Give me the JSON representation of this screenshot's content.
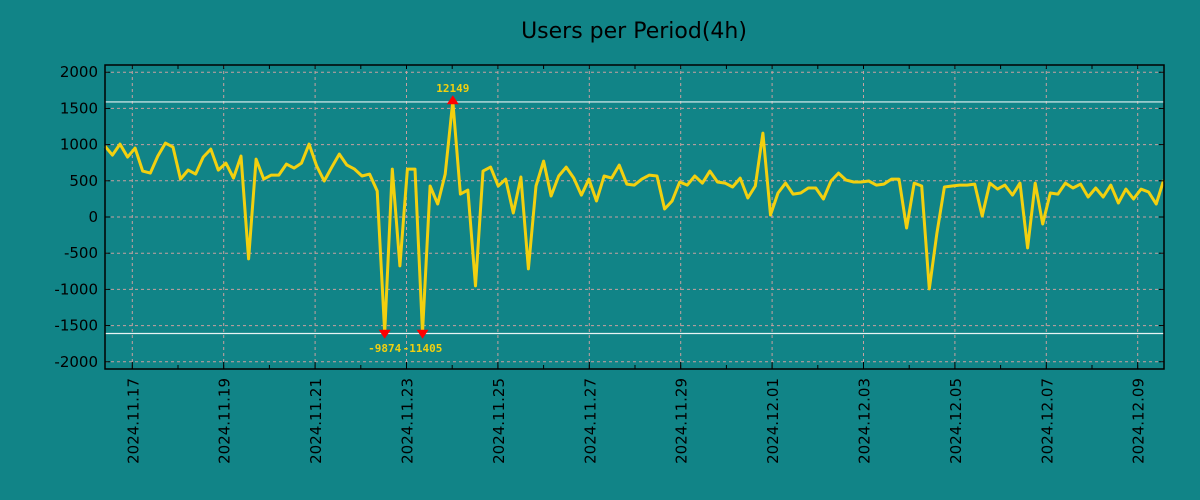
{
  "chart_data": {
    "type": "line",
    "title": "Users per Period(4h)",
    "xlabel": "",
    "ylabel": "",
    "ylim": [
      -2100,
      2100
    ],
    "yticks": [
      2000,
      1500,
      1000,
      500,
      0,
      -500,
      -1000,
      -1500,
      -2000
    ],
    "xticks": [
      "2024.11.17",
      "2024.11.19",
      "2024.11.21",
      "2024.11.23",
      "2024.11.25",
      "2024.11.27",
      "2024.11.29",
      "2024.12.01",
      "2024.12.03",
      "2024.12.05",
      "2024.12.07",
      "2024.12.09"
    ],
    "x_range_days_from_first_tick": [
      -0.6,
      22.57
    ],
    "grid": true,
    "reference_lines": [
      1590,
      -1610
    ],
    "series": [
      {
        "name": "Users per Period(4h)",
        "color": "#f2d00f",
        "values": [
          979,
          855,
          1007,
          828,
          952,
          634,
          607,
          841,
          1021,
          966,
          524,
          648,
          593,
          828,
          938,
          648,
          745,
          538,
          841,
          -579,
          800,
          524,
          579,
          579,
          731,
          676,
          745,
          1007,
          703,
          497,
          690,
          869,
          717,
          662,
          566,
          593,
          359,
          -1600,
          662,
          -676,
          662,
          662,
          -1600,
          428,
          179,
          593,
          1600,
          317,
          372,
          -952,
          634,
          690,
          428,
          524,
          55,
          552,
          -717,
          428,
          772,
          290,
          566,
          690,
          538,
          303,
          524,
          221,
          566,
          538,
          717,
          455,
          441,
          524,
          579,
          566,
          110,
          221,
          483,
          441,
          566,
          469,
          634,
          483,
          469,
          414,
          538,
          262,
          428,
          1159,
          28,
          331,
          469,
          317,
          331,
          400,
          400,
          248,
          497,
          607,
          510,
          483,
          483,
          497,
          441,
          455,
          524,
          524,
          -152,
          469,
          428,
          -993,
          -234,
          414,
          428,
          441,
          441,
          455,
          14,
          469,
          386,
          441,
          303,
          469,
          -428,
          469,
          -97,
          331,
          317,
          469,
          400,
          455,
          276,
          400,
          276,
          441,
          193,
          386,
          248,
          386,
          345,
          179,
          510
        ]
      }
    ],
    "annotations": [
      {
        "label": "12149",
        "index": 46,
        "kind": "max",
        "marker_color": "#ff0000"
      },
      {
        "label": "-9874",
        "index": 37,
        "kind": "min",
        "marker_color": "#ff0000"
      },
      {
        "label": "-11405",
        "index": 42,
        "kind": "min",
        "marker_color": "#ff0000"
      }
    ]
  }
}
